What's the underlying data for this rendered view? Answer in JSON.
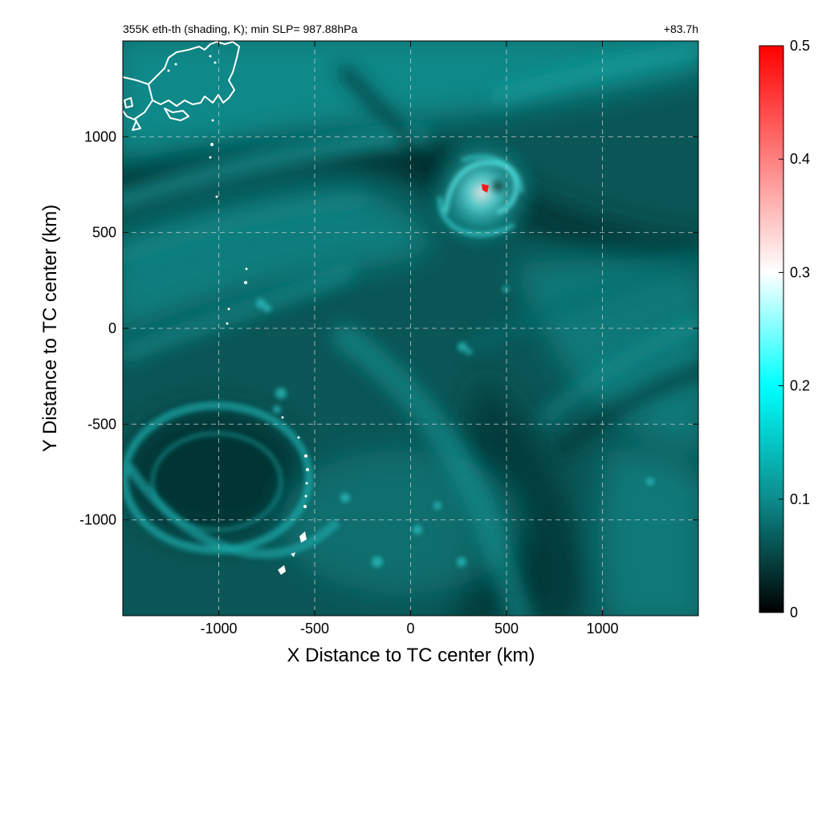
{
  "chart_data": {
    "type": "heatmap",
    "title_left": "355K eth-th (shading, K); min SLP= 987.88hPa",
    "title_right": "+83.7h",
    "xlabel": "X Distance to TC center (km)",
    "ylabel": "Y Distance to TC center (km)",
    "xlim": [
      -1500,
      1500
    ],
    "ylim": [
      -1500,
      1500
    ],
    "x_ticks": [
      -1000,
      -500,
      0,
      500,
      1000
    ],
    "y_ticks": [
      -1000,
      -500,
      0,
      500,
      1000
    ],
    "x_tick_labels": [
      "-1000",
      "-500",
      "0",
      "500",
      "1000"
    ],
    "y_tick_labels": [
      "-1000",
      "-500",
      "0",
      "500",
      "1000"
    ],
    "grid": true,
    "colorbar": {
      "range": [
        0,
        0.5
      ],
      "ticks": [
        0,
        0.1,
        0.2,
        0.3,
        0.4,
        0.5
      ],
      "tick_labels": [
        "0",
        "0.1",
        "0.2",
        "0.3",
        "0.4",
        "0.5"
      ],
      "stops": [
        {
          "value": 0,
          "color": "#000000"
        },
        {
          "value": 0.1,
          "color": "#0c8c8c"
        },
        {
          "value": 0.2,
          "color": "#00ffff"
        },
        {
          "value": 0.3,
          "color": "#ffffff"
        },
        {
          "value": 0.5,
          "color": "#ff0000"
        }
      ]
    },
    "features": {
      "tc_center": {
        "x": 380,
        "y": 730,
        "value": 0.5
      },
      "coastline_color": "#ffffff"
    }
  }
}
